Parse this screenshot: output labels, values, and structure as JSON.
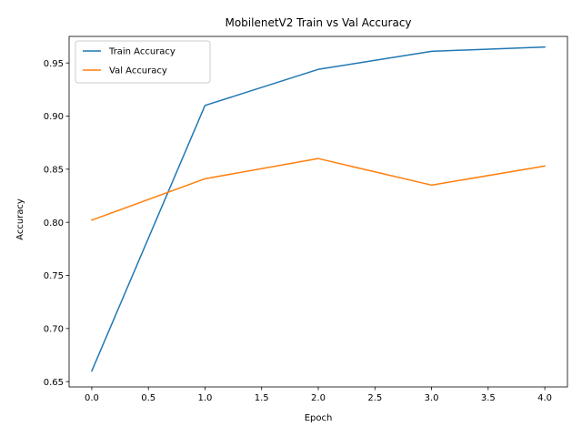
{
  "chart_data": {
    "type": "line",
    "title": "MobilenetV2 Train vs Val Accuracy",
    "xlabel": "Epoch",
    "ylabel": "Accuracy",
    "x": [
      0,
      1,
      2,
      3,
      4
    ],
    "xlim": [
      -0.2,
      4.2
    ],
    "ylim": [
      0.645,
      0.975
    ],
    "xticks": [
      0.0,
      0.5,
      1.0,
      1.5,
      2.0,
      2.5,
      3.0,
      3.5,
      4.0
    ],
    "xtick_labels": [
      "0.0",
      "0.5",
      "1.0",
      "1.5",
      "2.0",
      "2.5",
      "3.0",
      "3.5",
      "4.0"
    ],
    "yticks": [
      0.65,
      0.7,
      0.75,
      0.8,
      0.85,
      0.9,
      0.95
    ],
    "ytick_labels": [
      "0.65",
      "0.70",
      "0.75",
      "0.80",
      "0.85",
      "0.90",
      "0.95"
    ],
    "grid": false,
    "legend_position": "top-left",
    "series": [
      {
        "name": "Train Accuracy",
        "color": "#1f77b4",
        "values": [
          0.66,
          0.91,
          0.944,
          0.961,
          0.965
        ]
      },
      {
        "name": "Val Accuracy",
        "color": "#ff7f0e",
        "values": [
          0.802,
          0.841,
          0.86,
          0.835,
          0.853
        ]
      }
    ]
  }
}
